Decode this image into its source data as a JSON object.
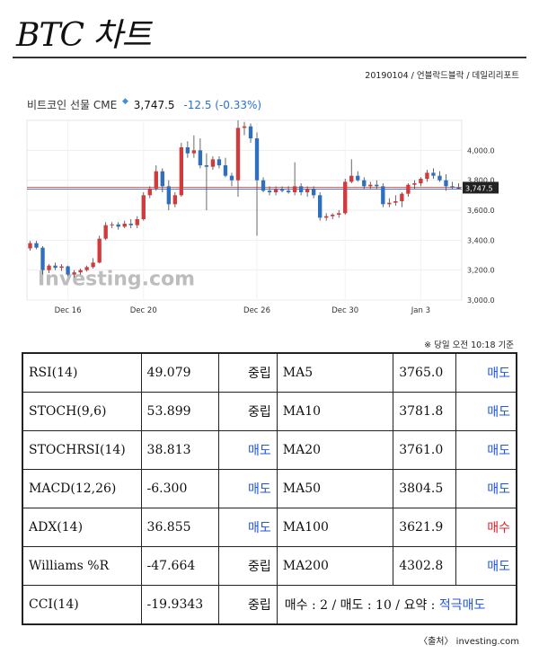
{
  "header": {
    "title": "BTC 차트",
    "subtitle": "20190104 / 언블락드블락 / 데일리리포트"
  },
  "chart_header": {
    "name": "비트코인 선물 CME",
    "price": "3,747.5",
    "change": "-12.5 (-0.33%)"
  },
  "chart_data": {
    "type": "candlestick",
    "x_ticks": [
      "Dec 16",
      "Dec 20",
      "Dec 26",
      "Dec 30",
      "Jan 3"
    ],
    "y_ticks": [
      "3,000.0",
      "3,200.0",
      "3,400.0",
      "3,600.0",
      "3,800.0",
      "4,000.0"
    ],
    "ylim": [
      3000,
      4200
    ],
    "last_price_label": "3,747.5",
    "last_price": 3747.5,
    "watermark": "Investing.com",
    "colors": {
      "up": "#d23b3b",
      "down": "#2f6fbf"
    },
    "candles": [
      {
        "o": 3345,
        "h": 3395,
        "l": 3330,
        "c": 3380
      },
      {
        "o": 3380,
        "h": 3395,
        "l": 3340,
        "c": 3350
      },
      {
        "o": 3350,
        "h": 3360,
        "l": 3170,
        "c": 3200
      },
      {
        "o": 3200,
        "h": 3240,
        "l": 3180,
        "c": 3230
      },
      {
        "o": 3230,
        "h": 3250,
        "l": 3200,
        "c": 3215
      },
      {
        "o": 3215,
        "h": 3240,
        "l": 3195,
        "c": 3225
      },
      {
        "o": 3225,
        "h": 3230,
        "l": 3160,
        "c": 3170
      },
      {
        "o": 3170,
        "h": 3200,
        "l": 3150,
        "c": 3185
      },
      {
        "o": 3185,
        "h": 3210,
        "l": 3170,
        "c": 3200
      },
      {
        "o": 3200,
        "h": 3230,
        "l": 3190,
        "c": 3220
      },
      {
        "o": 3220,
        "h": 3280,
        "l": 3210,
        "c": 3250
      },
      {
        "o": 3250,
        "h": 3430,
        "l": 3245,
        "c": 3410
      },
      {
        "o": 3410,
        "h": 3520,
        "l": 3400,
        "c": 3500
      },
      {
        "o": 3500,
        "h": 3520,
        "l": 3480,
        "c": 3505
      },
      {
        "o": 3505,
        "h": 3520,
        "l": 3470,
        "c": 3490
      },
      {
        "o": 3490,
        "h": 3530,
        "l": 3480,
        "c": 3510
      },
      {
        "o": 3510,
        "h": 3540,
        "l": 3480,
        "c": 3500
      },
      {
        "o": 3500,
        "h": 3560,
        "l": 3480,
        "c": 3540
      },
      {
        "o": 3540,
        "h": 3720,
        "l": 3530,
        "c": 3700
      },
      {
        "o": 3700,
        "h": 3760,
        "l": 3680,
        "c": 3745
      },
      {
        "o": 3745,
        "h": 3900,
        "l": 3730,
        "c": 3860
      },
      {
        "o": 3860,
        "h": 3880,
        "l": 3720,
        "c": 3760
      },
      {
        "o": 3760,
        "h": 3800,
        "l": 3600,
        "c": 3640
      },
      {
        "o": 3640,
        "h": 3720,
        "l": 3620,
        "c": 3700
      },
      {
        "o": 3700,
        "h": 4050,
        "l": 3690,
        "c": 4020
      },
      {
        "o": 4020,
        "h": 4060,
        "l": 3950,
        "c": 3980
      },
      {
        "o": 3980,
        "h": 4100,
        "l": 3950,
        "c": 4000
      },
      {
        "o": 4000,
        "h": 4080,
        "l": 3880,
        "c": 3900
      },
      {
        "o": 3900,
        "h": 3980,
        "l": 3600,
        "c": 3890
      },
      {
        "o": 3890,
        "h": 3960,
        "l": 3870,
        "c": 3940
      },
      {
        "o": 3940,
        "h": 3960,
        "l": 3880,
        "c": 3900
      },
      {
        "o": 3900,
        "h": 3950,
        "l": 3820,
        "c": 3830
      },
      {
        "o": 3830,
        "h": 3850,
        "l": 3760,
        "c": 3800
      },
      {
        "o": 3800,
        "h": 4200,
        "l": 3690,
        "c": 4150
      },
      {
        "o": 4150,
        "h": 4190,
        "l": 4100,
        "c": 4160
      },
      {
        "o": 4160,
        "h": 4180,
        "l": 4050,
        "c": 4080
      },
      {
        "o": 4080,
        "h": 4120,
        "l": 3430,
        "c": 3800
      },
      {
        "o": 3800,
        "h": 3820,
        "l": 3720,
        "c": 3730
      },
      {
        "o": 3730,
        "h": 3760,
        "l": 3700,
        "c": 3720
      },
      {
        "o": 3720,
        "h": 3760,
        "l": 3700,
        "c": 3740
      },
      {
        "o": 3740,
        "h": 3760,
        "l": 3720,
        "c": 3730
      },
      {
        "o": 3730,
        "h": 3760,
        "l": 3710,
        "c": 3720
      },
      {
        "o": 3720,
        "h": 3920,
        "l": 3700,
        "c": 3760
      },
      {
        "o": 3760,
        "h": 3780,
        "l": 3700,
        "c": 3720
      },
      {
        "o": 3720,
        "h": 3760,
        "l": 3690,
        "c": 3740
      },
      {
        "o": 3740,
        "h": 3760,
        "l": 3680,
        "c": 3700
      },
      {
        "o": 3700,
        "h": 3720,
        "l": 3530,
        "c": 3550
      },
      {
        "o": 3550,
        "h": 3580,
        "l": 3530,
        "c": 3560
      },
      {
        "o": 3560,
        "h": 3580,
        "l": 3540,
        "c": 3570
      },
      {
        "o": 3570,
        "h": 3600,
        "l": 3550,
        "c": 3580
      },
      {
        "o": 3580,
        "h": 3810,
        "l": 3570,
        "c": 3790
      },
      {
        "o": 3790,
        "h": 3940,
        "l": 3780,
        "c": 3830
      },
      {
        "o": 3830,
        "h": 3860,
        "l": 3790,
        "c": 3800
      },
      {
        "o": 3800,
        "h": 3820,
        "l": 3740,
        "c": 3760
      },
      {
        "o": 3760,
        "h": 3790,
        "l": 3740,
        "c": 3770
      },
      {
        "o": 3770,
        "h": 3800,
        "l": 3740,
        "c": 3760
      },
      {
        "o": 3760,
        "h": 3780,
        "l": 3620,
        "c": 3640
      },
      {
        "o": 3640,
        "h": 3680,
        "l": 3620,
        "c": 3650
      },
      {
        "o": 3650,
        "h": 3700,
        "l": 3630,
        "c": 3660
      },
      {
        "o": 3660,
        "h": 3720,
        "l": 3620,
        "c": 3710
      },
      {
        "o": 3710,
        "h": 3780,
        "l": 3690,
        "c": 3770
      },
      {
        "o": 3770,
        "h": 3800,
        "l": 3740,
        "c": 3780
      },
      {
        "o": 3780,
        "h": 3820,
        "l": 3760,
        "c": 3810
      },
      {
        "o": 3810,
        "h": 3870,
        "l": 3790,
        "c": 3850
      },
      {
        "o": 3850,
        "h": 3880,
        "l": 3810,
        "c": 3830
      },
      {
        "o": 3830,
        "h": 3860,
        "l": 3790,
        "c": 3800
      },
      {
        "o": 3800,
        "h": 3840,
        "l": 3730,
        "c": 3760
      },
      {
        "o": 3760,
        "h": 3790,
        "l": 3740,
        "c": 3750
      },
      {
        "o": 3750,
        "h": 3780,
        "l": 3740,
        "c": 3748
      }
    ]
  },
  "note": "※ 당일 오전 10:18 기준",
  "indicators": [
    {
      "name": "RSI(14)",
      "value": "49.079",
      "action": "중립",
      "action_type": "neutral",
      "ma": "MA5",
      "ma_value": "3765.0",
      "ma_action": "매도",
      "ma_action_type": "sell"
    },
    {
      "name": "STOCH(9,6)",
      "value": "53.899",
      "action": "중립",
      "action_type": "neutral",
      "ma": "MA10",
      "ma_value": "3781.8",
      "ma_action": "매도",
      "ma_action_type": "sell"
    },
    {
      "name": "STOCHRSI(14)",
      "value": "38.813",
      "action": "매도",
      "action_type": "sell",
      "ma": "MA20",
      "ma_value": "3761.0",
      "ma_action": "매도",
      "ma_action_type": "sell"
    },
    {
      "name": "MACD(12,26)",
      "value": "-6.300",
      "action": "매도",
      "action_type": "sell",
      "ma": "MA50",
      "ma_value": "3804.5",
      "ma_action": "매도",
      "ma_action_type": "sell"
    },
    {
      "name": "ADX(14)",
      "value": "36.855",
      "action": "매도",
      "action_type": "sell",
      "ma": "MA100",
      "ma_value": "3621.9",
      "ma_action": "매수",
      "ma_action_type": "buy"
    },
    {
      "name": "Williams %R",
      "value": "-47.664",
      "action": "중립",
      "action_type": "neutral",
      "ma": "MA200",
      "ma_value": "4302.8",
      "ma_action": "매도",
      "ma_action_type": "sell"
    }
  ],
  "last_row": {
    "name": "CCI(14)",
    "value": "-19.9343",
    "action": "중립",
    "summary_prefix": "매수 : 2 / 매도 : 10 / 요약 : ",
    "summary_result": "적극매도"
  },
  "source": "〈출처〉 investing.com"
}
